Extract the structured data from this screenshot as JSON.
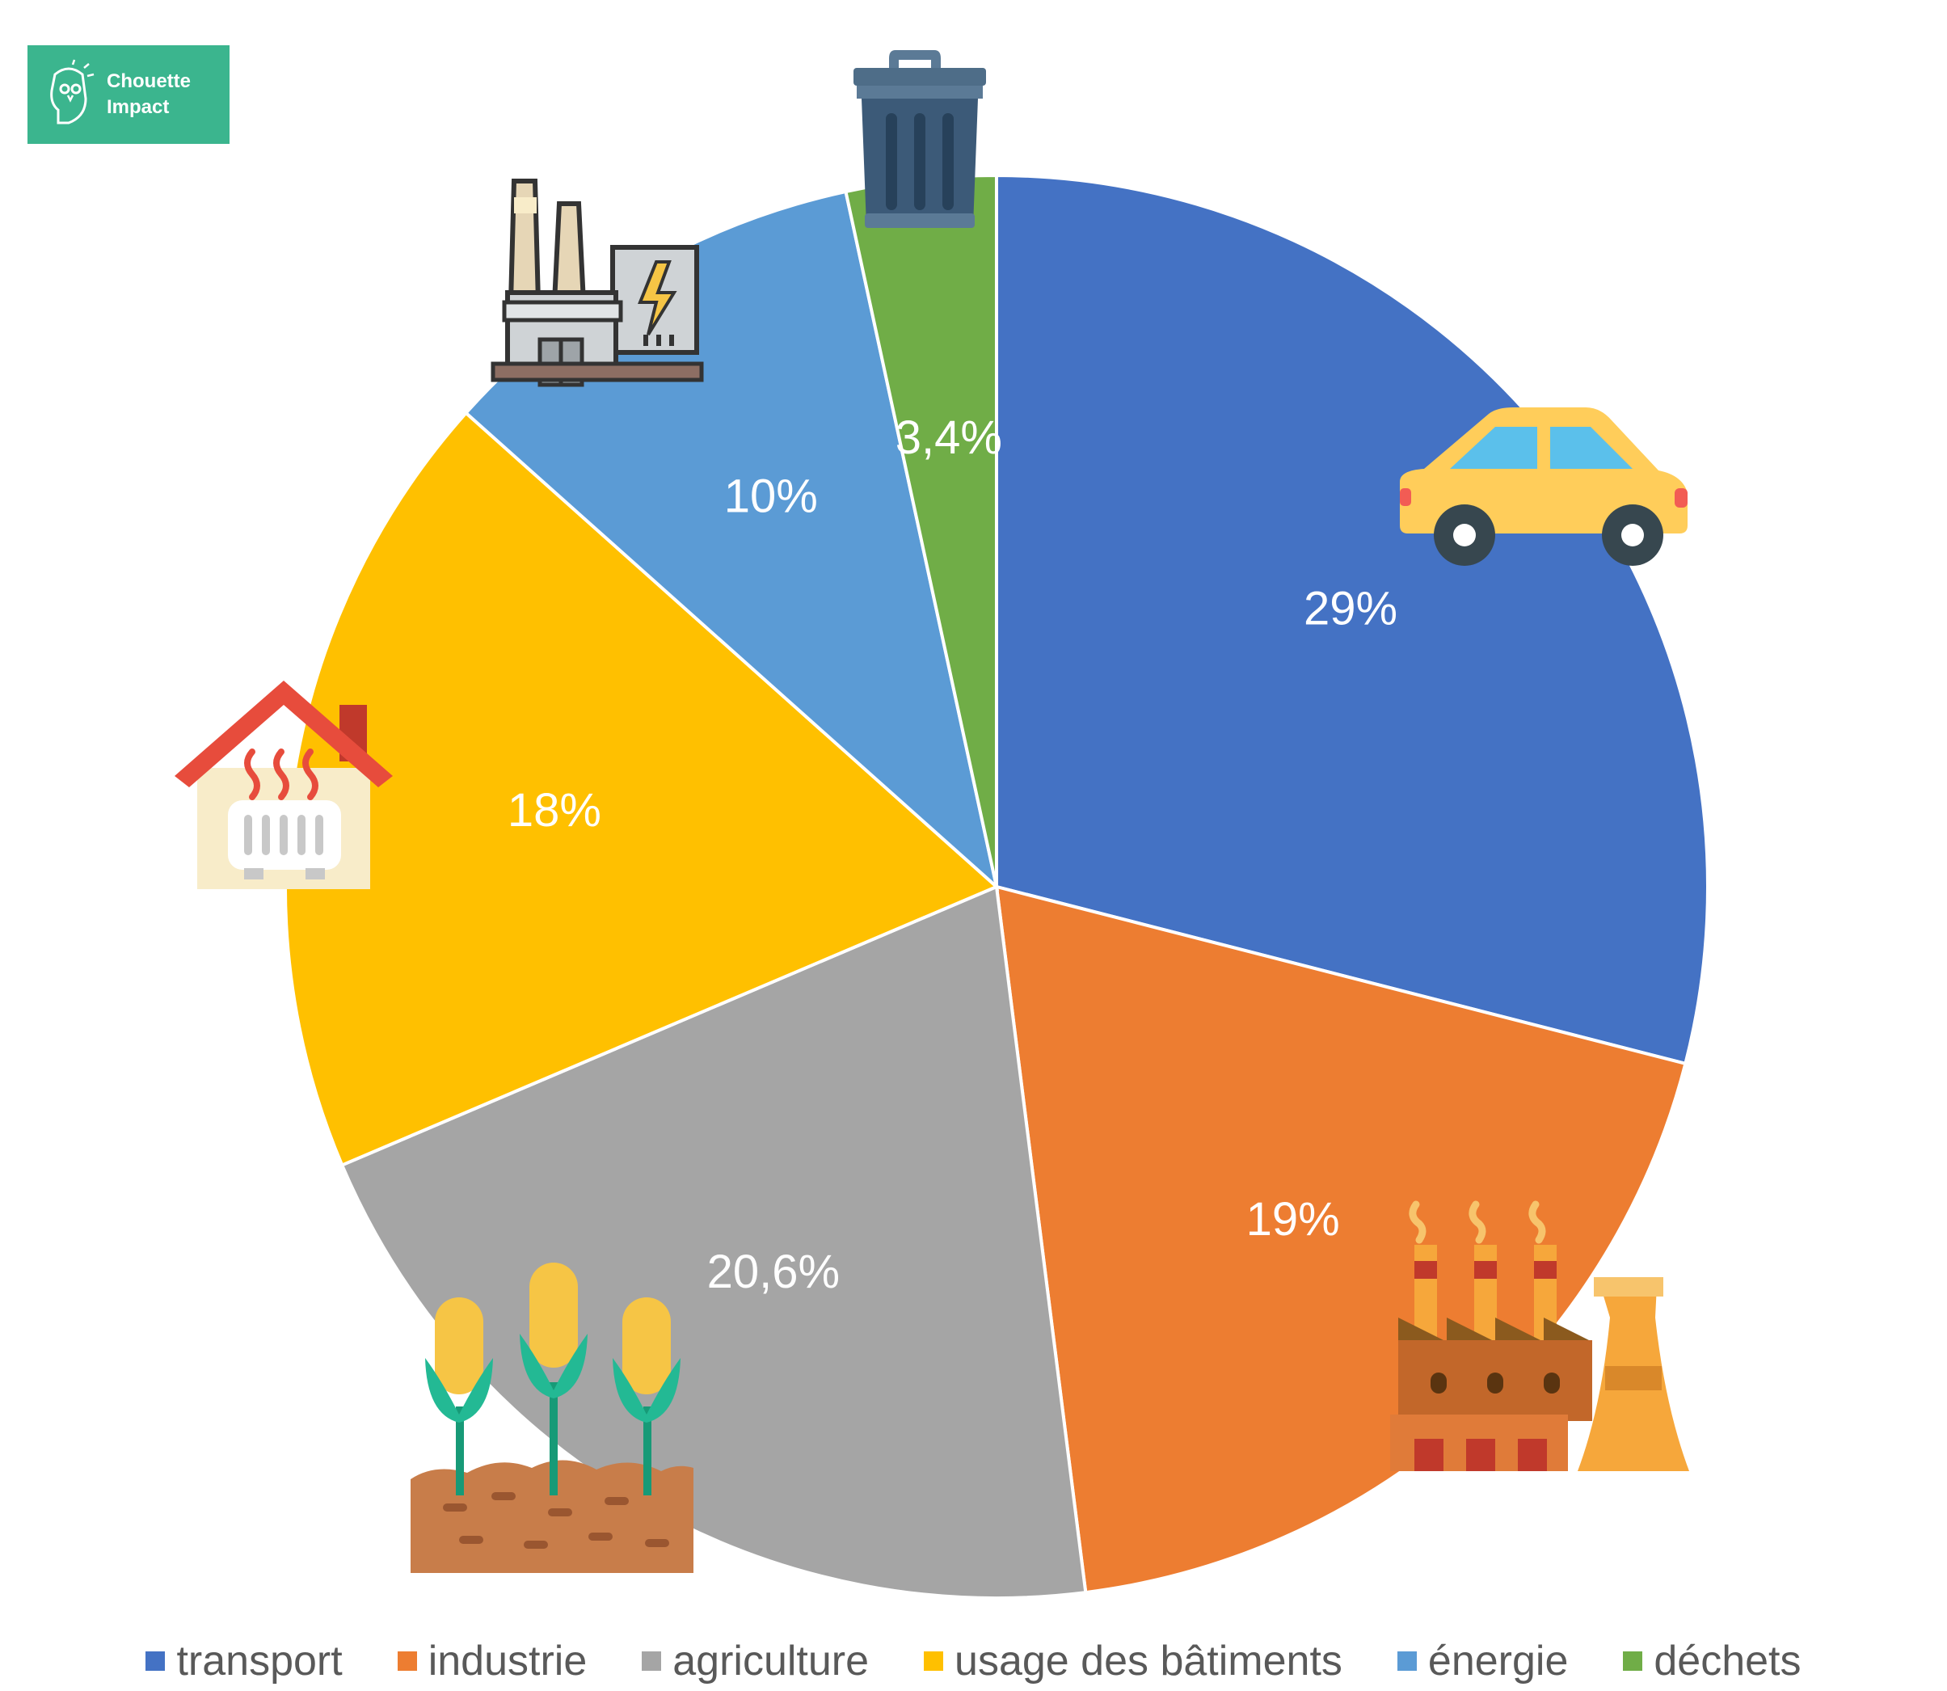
{
  "logo": {
    "line1": "Chouette",
    "line2": "Impact"
  },
  "chart_data": {
    "type": "pie",
    "categories": [
      "transport",
      "industrie",
      "agriculture",
      "usage des bâtiments",
      "énergie",
      "déchets"
    ],
    "values": [
      29,
      19,
      20.6,
      18,
      10,
      3.4
    ],
    "labels": [
      "29%",
      "19%",
      "20,6%",
      "18%",
      "10%",
      "3,4%"
    ],
    "colors": [
      "#4472c4",
      "#ed7d31",
      "#a5a5a5",
      "#ffc000",
      "#5b9bd5",
      "#70ad47"
    ],
    "icons": [
      "car-icon",
      "factory-icon",
      "corn-field-icon",
      "heated-house-icon",
      "power-plant-icon",
      "trash-can-icon"
    ],
    "legend_position": "bottom"
  }
}
